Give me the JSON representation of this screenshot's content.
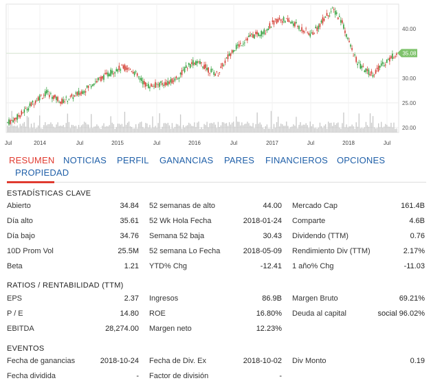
{
  "chart_data": {
    "type": "candlestick",
    "x_tick_labels": [
      "Jul",
      "2014",
      "Jul",
      "2015",
      "Jul",
      "2016",
      "Jul",
      "2017",
      "Jul",
      "2018",
      "Jul"
    ],
    "y_tick_labels": [
      "20.00",
      "25.00",
      "30.00",
      "35.00",
      "40.00"
    ],
    "ylim": [
      19,
      45
    ],
    "last_price_label": "35.08",
    "last_price": 35.08,
    "price_path": [
      [
        0,
        21.0
      ],
      [
        0.5,
        21.7
      ],
      [
        1.0,
        22.8
      ],
      [
        1.6,
        24.4
      ],
      [
        2.2,
        26.0
      ],
      [
        2.8,
        27.0
      ],
      [
        3.3,
        26.2
      ],
      [
        3.9,
        25.3
      ],
      [
        4.4,
        25.9
      ],
      [
        5.0,
        26.7
      ],
      [
        5.6,
        27.8
      ],
      [
        6.1,
        29.0
      ],
      [
        6.7,
        30.0
      ],
      [
        7.2,
        30.8
      ],
      [
        7.8,
        31.8
      ],
      [
        8.3,
        32.2
      ],
      [
        8.9,
        31.7
      ],
      [
        9.4,
        30.0
      ],
      [
        10.0,
        28.4
      ],
      [
        10.6,
        28.6
      ],
      [
        11.1,
        28.9
      ],
      [
        11.7,
        29.2
      ],
      [
        12.2,
        30.3
      ],
      [
        12.8,
        32.2
      ],
      [
        13.3,
        33.2
      ],
      [
        13.9,
        32.8
      ],
      [
        14.4,
        31.6
      ],
      [
        15.0,
        30.8
      ],
      [
        15.5,
        33.2
      ],
      [
        16.1,
        35.8
      ],
      [
        16.7,
        37.0
      ],
      [
        17.2,
        38.3
      ],
      [
        17.8,
        38.8
      ],
      [
        18.3,
        39.3
      ],
      [
        18.9,
        41.0
      ],
      [
        19.4,
        42.0
      ],
      [
        20.0,
        41.6
      ],
      [
        20.5,
        41.0
      ],
      [
        21.1,
        39.8
      ],
      [
        21.7,
        38.8
      ],
      [
        22.2,
        40.4
      ],
      [
        22.8,
        42.8
      ],
      [
        23.3,
        43.8
      ],
      [
        23.9,
        41.5
      ],
      [
        24.4,
        37.2
      ],
      [
        25.0,
        33.0
      ],
      [
        25.6,
        31.4
      ],
      [
        26.1,
        30.9
      ],
      [
        26.7,
        32.5
      ],
      [
        27.2,
        33.7
      ],
      [
        27.8,
        35.1
      ]
    ]
  },
  "tabs": [
    {
      "label": "RESUMEN",
      "active": true
    },
    {
      "label": "NOTICIAS",
      "active": false
    },
    {
      "label": "PERFIL",
      "active": false
    },
    {
      "label": "GANANCIAS",
      "active": false
    },
    {
      "label": "PARES",
      "active": false
    },
    {
      "label": "FINANCIEROS",
      "active": false
    },
    {
      "label": "OPCIONES",
      "active": false
    },
    {
      "label": "PROPIEDAD",
      "active": false
    }
  ],
  "key_stats": {
    "title": "ESTADÍSTICAS CLAVE",
    "rows": [
      [
        {
          "label": "Abierto",
          "value": "34.84"
        },
        {
          "label": "52 semanas de alto",
          "value": "44.00"
        },
        {
          "label": "Mercado Cap",
          "value": "161.4B"
        }
      ],
      [
        {
          "label": "Día alto",
          "value": "35.61"
        },
        {
          "label": "52 Wk Hola Fecha",
          "value": "2018-01-24"
        },
        {
          "label": "Comparte",
          "value": "4.6B"
        }
      ],
      [
        {
          "label": "Día bajo",
          "value": "34.76"
        },
        {
          "label": "Semana 52 baja",
          "value": "30.43"
        },
        {
          "label": "Dividendo (TTM)",
          "value": "0.76"
        }
      ],
      [
        {
          "label": "10D Prom Vol",
          "value": "25.5M"
        },
        {
          "label": "52 semana Lo Fecha",
          "value": "2018-05-09"
        },
        {
          "label": "Rendimiento Div (TTM)",
          "value": "2.17%"
        }
      ],
      [
        {
          "label": "Beta",
          "value": "1.21"
        },
        {
          "label": "YTD% Chg",
          "value": "-12.41"
        },
        {
          "label": "1 año% Chg",
          "value": "-11.03"
        }
      ]
    ]
  },
  "ratios": {
    "title": "RATIOS / RENTABILIDAD (TTM)",
    "rows": [
      [
        {
          "label": "EPS",
          "value": "2.37"
        },
        {
          "label": "Ingresos",
          "value": "86.9B"
        },
        {
          "label": "Margen Bruto",
          "value": "69.21%"
        }
      ],
      [
        {
          "label": "P / E",
          "value": "14.80"
        },
        {
          "label": "ROE",
          "value": "16.80%"
        },
        {
          "label": "Deuda al capital",
          "value": "social 96.02%"
        }
      ],
      [
        {
          "label": "EBITDA",
          "value": "28,274.00"
        },
        {
          "label": "Margen neto",
          "value": "12.23%"
        },
        {
          "label": "",
          "value": ""
        }
      ]
    ]
  },
  "events": {
    "title": "EVENTOS",
    "rows": [
      [
        {
          "label": "Fecha de ganancias",
          "value": "2018-10-24"
        },
        {
          "label": "Fecha de Div. Ex",
          "value": "2018-10-02"
        },
        {
          "label": "Div Monto",
          "value": "0.19"
        }
      ],
      [
        {
          "label": "Fecha dividida",
          "value": "-"
        },
        {
          "label": "Factor de división",
          "value": "-"
        },
        {
          "label": "",
          "value": ""
        }
      ]
    ]
  },
  "colors": {
    "up": "#2f9e3a",
    "down": "#d33a2f",
    "volume": "#c7c7c7",
    "accent_red": "#e03a2f",
    "tab_blue": "#1f5fa8",
    "price_badge": "#7ec26b"
  }
}
